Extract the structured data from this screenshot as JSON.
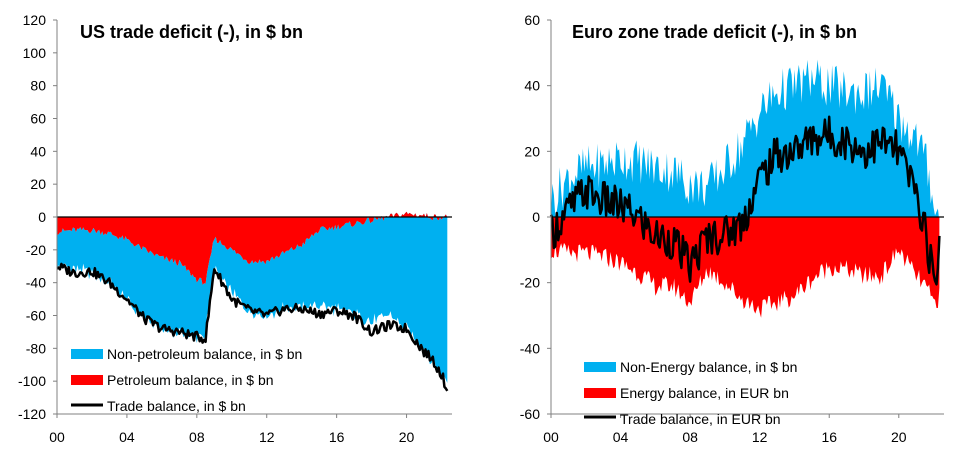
{
  "chart_data": [
    {
      "type": "area",
      "title": "US trade deficit (-), in $ bn",
      "ylim": [
        -120,
        120
      ],
      "y_ticks": [
        "120",
        "100",
        "80",
        "60",
        "40",
        "20",
        "0",
        "-20",
        "-40",
        "-60",
        "-80",
        "-100",
        "-120"
      ],
      "x_range": [
        2000,
        2022.6
      ],
      "x_ticks": [
        "00",
        "04",
        "08",
        "12",
        "16",
        "20"
      ],
      "legend_position": "bottom-left",
      "colors": {
        "non_petroleum": "#00B0F0",
        "petroleum": "#FF0000",
        "trade": "#000000"
      },
      "series": [
        {
          "name": "Non-petroleum balance, in $ bn",
          "kind": "stacked-area",
          "x": [
            2000,
            2001,
            2002,
            2003,
            2004,
            2005,
            2006,
            2007,
            2008,
            2008.5,
            2009,
            2010,
            2011,
            2012,
            2013,
            2014,
            2015,
            2016,
            2017,
            2018,
            2019,
            2020,
            2021,
            2021.5,
            2022,
            2022.4
          ],
          "values": [
            -20,
            -24,
            -26,
            -30,
            -37,
            -42,
            -44,
            -43,
            -36,
            -30,
            -18,
            -26,
            -30,
            -33,
            -34,
            -38,
            -46,
            -50,
            -55,
            -62,
            -60,
            -70,
            -82,
            -88,
            -95,
            -102
          ]
        },
        {
          "name": "Petroleum balance, in $ bn",
          "kind": "stacked-area",
          "x": [
            2000,
            2001,
            2002,
            2003,
            2004,
            2005,
            2006,
            2007,
            2008,
            2008.5,
            2009,
            2010,
            2011,
            2012,
            2013,
            2014,
            2015,
            2016,
            2017,
            2018,
            2019,
            2020,
            2021,
            2021.5,
            2022,
            2022.4
          ],
          "values": [
            -9,
            -8,
            -8,
            -10,
            -14,
            -20,
            -25,
            -28,
            -38,
            -40,
            -13,
            -20,
            -27,
            -27,
            -22,
            -17,
            -8,
            -6,
            -4,
            -2,
            0,
            2,
            1,
            0,
            0,
            0
          ]
        },
        {
          "name": "Trade balance, in $ bn",
          "kind": "line",
          "x": [
            2000,
            2001,
            2002,
            2003,
            2004,
            2005,
            2006,
            2007,
            2008,
            2008.5,
            2009,
            2010,
            2011,
            2012,
            2013,
            2014,
            2015,
            2016,
            2017,
            2018,
            2019,
            2020,
            2021,
            2021.5,
            2022,
            2022.4
          ],
          "values": [
            -30,
            -34,
            -33,
            -40,
            -50,
            -62,
            -68,
            -70,
            -73,
            -74,
            -31,
            -50,
            -57,
            -60,
            -56,
            -56,
            -59,
            -57,
            -60,
            -70,
            -66,
            -68,
            -82,
            -87,
            -96,
            -107
          ]
        }
      ]
    },
    {
      "type": "area",
      "title": "Euro zone trade deficit (-), in $ bn",
      "ylim": [
        -60,
        60
      ],
      "y_ticks": [
        "60",
        "40",
        "20",
        "0",
        "-20",
        "-40",
        "-60"
      ],
      "x_range": [
        2000,
        2022.6
      ],
      "x_ticks": [
        "00",
        "04",
        "08",
        "12",
        "16",
        "20"
      ],
      "legend_position": "bottom-left",
      "colors": {
        "non_energy": "#00B0F0",
        "energy": "#FF0000",
        "trade": "#000000"
      },
      "series": [
        {
          "name": "Non-Energy balance, in $ bn",
          "kind": "stacked-area",
          "x": [
            2000,
            2001,
            2002,
            2003,
            2004,
            2005,
            2006,
            2007,
            2008,
            2009,
            2010,
            2011,
            2012,
            2013,
            2014,
            2015,
            2016,
            2017,
            2018,
            2019,
            2020,
            2021,
            2021.5,
            2022,
            2022.4
          ],
          "values": [
            5,
            12,
            15,
            16,
            18,
            17,
            15,
            14,
            10,
            9,
            15,
            22,
            32,
            38,
            40,
            42,
            40,
            38,
            38,
            40,
            30,
            24,
            18,
            6,
            -5
          ]
        },
        {
          "name": "Energy balance, in EUR bn",
          "kind": "stacked-area",
          "x": [
            2000,
            2001,
            2002,
            2003,
            2004,
            2005,
            2006,
            2007,
            2008,
            2009,
            2010,
            2011,
            2012,
            2013,
            2014,
            2015,
            2016,
            2017,
            2018,
            2019,
            2020,
            2021,
            2021.5,
            2022,
            2022.4
          ],
          "values": [
            -10,
            -11,
            -11,
            -12,
            -14,
            -17,
            -21,
            -21,
            -26,
            -16,
            -20,
            -25,
            -28,
            -26,
            -24,
            -19,
            -15,
            -16,
            -18,
            -18,
            -10,
            -18,
            -21,
            -26,
            -24
          ]
        },
        {
          "name": "Trade balance, in EUR bn",
          "kind": "line",
          "x": [
            2000,
            2001,
            2002,
            2003,
            2004,
            2005,
            2006,
            2007,
            2008,
            2009,
            2010,
            2011,
            2012,
            2013,
            2014,
            2015,
            2016,
            2017,
            2018,
            2019,
            2020,
            2021,
            2021.5,
            2022,
            2022.4
          ],
          "values": [
            -5,
            2,
            8,
            5,
            3,
            0,
            -6,
            -7,
            -15,
            -6,
            -5,
            -2,
            12,
            19,
            20,
            24,
            25,
            23,
            20,
            23,
            20,
            7,
            -3,
            -20,
            -8
          ]
        }
      ]
    }
  ]
}
